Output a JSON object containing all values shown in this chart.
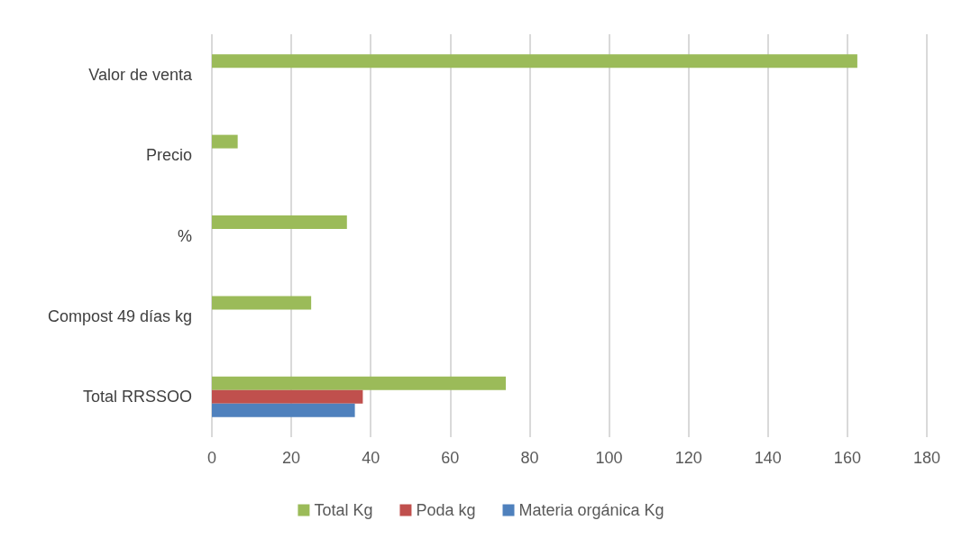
{
  "chart_data": {
    "type": "bar",
    "orientation": "horizontal",
    "categories": [
      "Valor de venta",
      "Precio",
      "%",
      "Compost 49 días kg",
      "Total RRSSOO"
    ],
    "series": [
      {
        "name": "Total Kg",
        "color": "#9bbb59",
        "values": [
          162.5,
          6.5,
          34,
          25,
          74
        ]
      },
      {
        "name": "Poda kg",
        "color": "#c0504d",
        "values": [
          null,
          null,
          null,
          null,
          38
        ]
      },
      {
        "name": "Materia orgánica Kg",
        "color": "#4f81bd",
        "values": [
          null,
          null,
          null,
          null,
          36
        ]
      }
    ],
    "xlim": [
      0,
      180
    ],
    "xticks": [
      0,
      20,
      40,
      60,
      80,
      100,
      120,
      140,
      160,
      180
    ],
    "grid": "x",
    "legend": "bottom"
  }
}
